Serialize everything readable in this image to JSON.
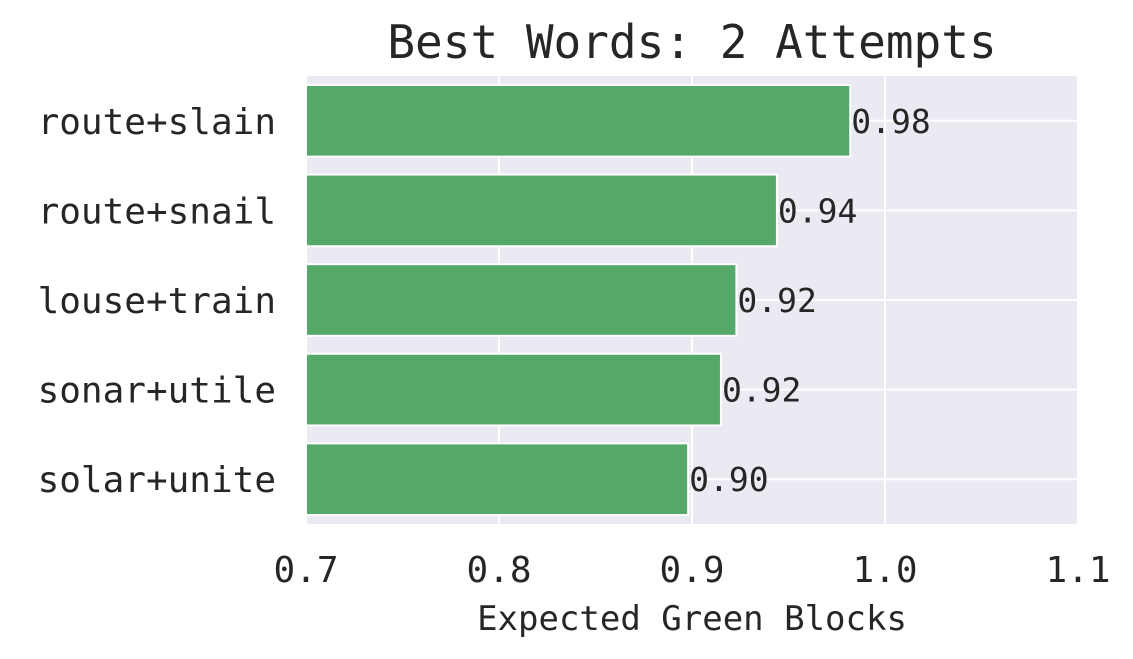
{
  "chart_data": {
    "type": "bar",
    "orientation": "horizontal",
    "title": "Best Words: 2 Attempts",
    "xlabel": "Expected Green Blocks",
    "ylabel": "",
    "categories": [
      "route+slain",
      "route+snail",
      "louse+train",
      "sonar+utile",
      "solar+unite"
    ],
    "values": [
      0.982,
      0.944,
      0.923,
      0.915,
      0.898
    ],
    "value_labels": [
      "0.98",
      "0.94",
      "0.92",
      "0.92",
      "0.90"
    ],
    "xlim": [
      0.7,
      1.1
    ],
    "xticks": [
      0.7,
      0.8,
      0.9,
      1.0,
      1.1
    ],
    "xtick_labels": [
      "0.7",
      "0.8",
      "0.9",
      "1.0",
      "1.1"
    ],
    "grid": true,
    "colors": {
      "bar": "#55a868",
      "plot_background": "#eaeaf2",
      "grid": "#ffffff",
      "text": "#262626"
    }
  }
}
